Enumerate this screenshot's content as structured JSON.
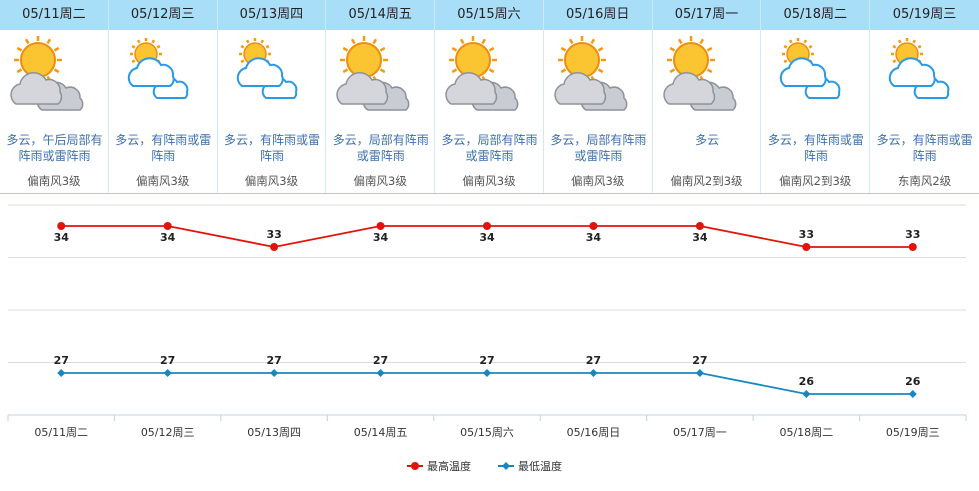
{
  "forecast": {
    "days": [
      {
        "date": "05/11周二",
        "desc": "多云，午后局部有阵雨或雷阵雨",
        "wind": "偏南风3级"
      },
      {
        "date": "05/12周三",
        "desc": "多云，有阵雨或雷阵雨",
        "wind": "偏南风3级"
      },
      {
        "date": "05/13周四",
        "desc": "多云，有阵雨或雷阵雨",
        "wind": "偏南风3级"
      },
      {
        "date": "05/14周五",
        "desc": "多云，局部有阵雨或雷阵雨",
        "wind": "偏南风3级"
      },
      {
        "date": "05/15周六",
        "desc": "多云，局部有阵雨或雷阵雨",
        "wind": "偏南风3级"
      },
      {
        "date": "05/16周日",
        "desc": "多云，局部有阵雨或雷阵雨",
        "wind": "偏南风3级"
      },
      {
        "date": "05/17周一",
        "desc": "多云",
        "wind": "偏南风2到3级"
      },
      {
        "date": "05/18周二",
        "desc": "多云，有阵雨或雷阵雨",
        "wind": "偏南风2到3级"
      },
      {
        "date": "05/19周三",
        "desc": "多云，有阵雨或雷阵雨",
        "wind": "东南风2级"
      }
    ]
  },
  "chart_data": {
    "type": "line",
    "categories": [
      "05/11周二",
      "05/12周三",
      "05/13周四",
      "05/14周五",
      "05/15周六",
      "05/16周日",
      "05/17周一",
      "05/18周二",
      "05/19周三"
    ],
    "series": [
      {
        "name": "最高温度",
        "color": "#e3120b",
        "marker": "circle",
        "values": [
          34,
          34,
          33,
          34,
          34,
          34,
          34,
          33,
          33
        ]
      },
      {
        "name": "最低温度",
        "color": "#1787c2",
        "marker": "diamond",
        "values": [
          27,
          27,
          27,
          27,
          27,
          27,
          27,
          26,
          26
        ]
      }
    ],
    "ylim": [
      25,
      35
    ],
    "yticks": [
      25,
      27.5,
      30,
      32.5,
      35
    ],
    "grid": true,
    "legend": "bottom"
  }
}
